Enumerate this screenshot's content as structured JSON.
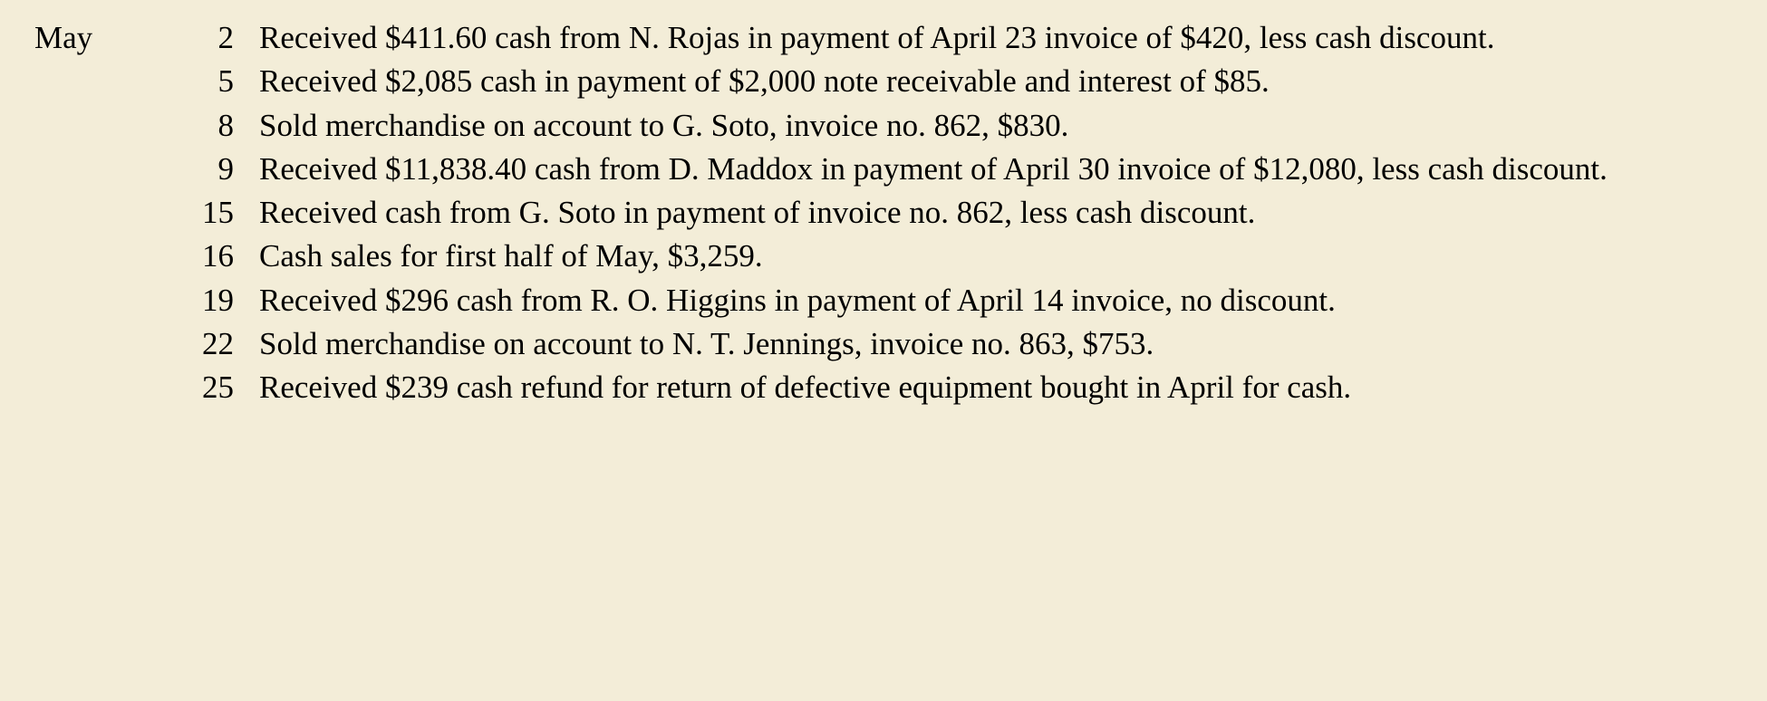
{
  "page": {
    "background_color": "#f3edd8",
    "text_color": "#000000",
    "font_family": "Georgia, Times New Roman, serif",
    "font_size_pt": 26
  },
  "month": "May",
  "entries": [
    {
      "day": "2",
      "text": "Received $411.60 cash from N. Rojas in payment of April 23 invoice of $420, less cash discount."
    },
    {
      "day": "5",
      "text": "Received $2,085 cash in payment of $2,000 note receivable and interest of $85."
    },
    {
      "day": "8",
      "text": "Sold merchandise on account to G. Soto, invoice no. 862, $830."
    },
    {
      "day": "9",
      "text": "Received $11,838.40 cash from D. Maddox in payment of April 30 invoice of $12,080, less cash discount."
    },
    {
      "day": "15",
      "text": "Received cash from G. Soto in payment of invoice no. 862, less cash discount."
    },
    {
      "day": "16",
      "text": "Cash sales for first half of May, $3,259."
    },
    {
      "day": "19",
      "text": "Received $296 cash from R. O. Higgins in payment of April 14 invoice, no discount."
    },
    {
      "day": "22",
      "text": "Sold merchandise on account to N. T. Jennings, invoice no. 863, $753."
    },
    {
      "day": "25",
      "text": "Received $239 cash refund for return of defective equipment bought in April for cash."
    }
  ]
}
